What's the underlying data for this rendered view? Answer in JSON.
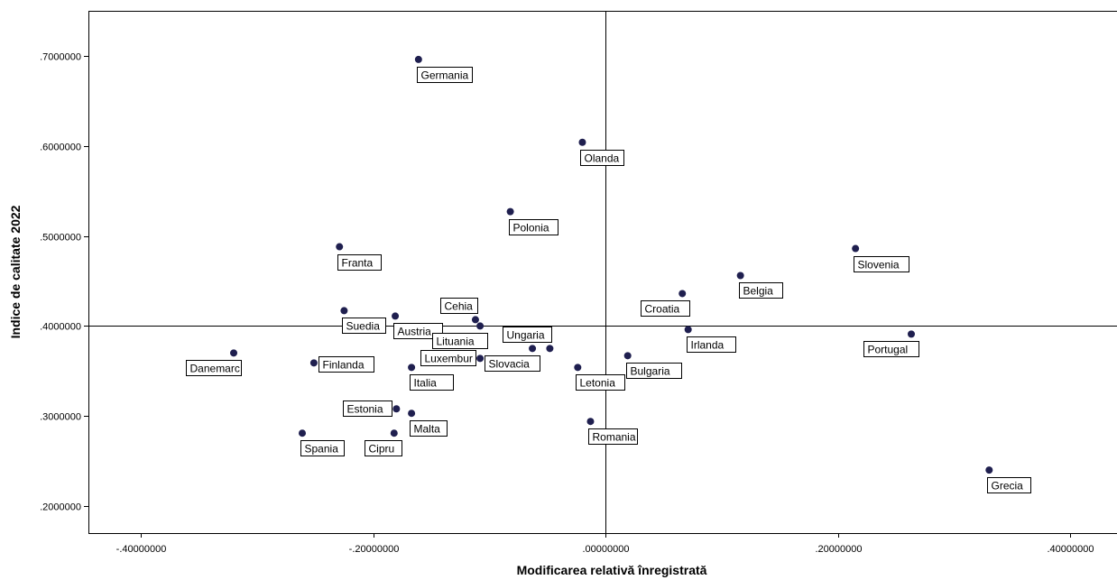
{
  "chart_data": {
    "type": "scatter",
    "xlabel": "Modificarea relativă înregistrată",
    "ylabel": "Indice de calitate 2022",
    "xlim": [
      -0.445,
      0.44
    ],
    "ylim": [
      0.17,
      0.75
    ],
    "x_ticks": [
      {
        "value": -0.4,
        "label": "-.40000000"
      },
      {
        "value": -0.2,
        "label": "-.20000000"
      },
      {
        "value": 0.0,
        "label": ".00000000"
      },
      {
        "value": 0.2,
        "label": ".20000000"
      },
      {
        "value": 0.4,
        "label": ".40000000"
      }
    ],
    "y_ticks": [
      {
        "value": 0.2,
        "label": ".2000000"
      },
      {
        "value": 0.3,
        "label": ".3000000"
      },
      {
        "value": 0.4,
        "label": ".4000000"
      },
      {
        "value": 0.5,
        "label": ".5000000"
      },
      {
        "value": 0.6,
        "label": ".6000000"
      },
      {
        "value": 0.7,
        "label": ".7000000"
      }
    ],
    "reference_lines": {
      "x": 0.0,
      "y": 0.4
    },
    "grid": false,
    "marker_color": "#1f1f4f",
    "points": [
      {
        "label": "Germania",
        "x": -0.161,
        "y": 0.696,
        "label_side": "below-right"
      },
      {
        "label": "Olanda",
        "x": -0.02,
        "y": 0.604,
        "label_side": "below-right"
      },
      {
        "label": "Polonia",
        "x": -0.082,
        "y": 0.527,
        "label_side": "below-right"
      },
      {
        "label": "Franta",
        "x": -0.229,
        "y": 0.488,
        "label_side": "below-right"
      },
      {
        "label": "Slovenia",
        "x": 0.215,
        "y": 0.486,
        "label_side": "below-right"
      },
      {
        "label": "Belgia",
        "x": 0.116,
        "y": 0.456,
        "label_side": "below-right"
      },
      {
        "label": "Croatia",
        "x": 0.066,
        "y": 0.436,
        "label_side": "below-left"
      },
      {
        "label": "Suedia",
        "x": -0.225,
        "y": 0.417,
        "label_side": "below-right"
      },
      {
        "label": "Austria",
        "x": -0.181,
        "y": 0.411,
        "label_side": "below-right"
      },
      {
        "label": "Cehia",
        "x": -0.112,
        "y": 0.407,
        "label_side": "above-left"
      },
      {
        "label": "Lituania",
        "x": -0.108,
        "y": 0.4,
        "label_side": "below-left"
      },
      {
        "label": "Irlanda",
        "x": 0.071,
        "y": 0.396,
        "label_side": "below-right"
      },
      {
        "label": "Portugal",
        "x": 0.263,
        "y": 0.391,
        "label_side": "below-left"
      },
      {
        "label": "Ungaria",
        "x": -0.048,
        "y": 0.375,
        "label_side": "above-left"
      },
      {
        "label": "Slovacia",
        "x": -0.063,
        "y": 0.375,
        "label_side": "below-left"
      },
      {
        "label": "Danemarc",
        "x": -0.32,
        "y": 0.37,
        "label_side": "below-left"
      },
      {
        "label": "Bulgaria",
        "x": 0.019,
        "y": 0.367,
        "label_side": "below-right"
      },
      {
        "label": "Luxembur",
        "x": -0.108,
        "y": 0.364,
        "label_side": "left"
      },
      {
        "label": "Finlanda",
        "x": -0.251,
        "y": 0.359,
        "label_side": "right"
      },
      {
        "label": "Italia",
        "x": -0.167,
        "y": 0.354,
        "label_side": "below-right"
      },
      {
        "label": "Letonia",
        "x": -0.024,
        "y": 0.354,
        "label_side": "below-right"
      },
      {
        "label": "Estonia",
        "x": -0.18,
        "y": 0.308,
        "label_side": "left"
      },
      {
        "label": "Malta",
        "x": -0.167,
        "y": 0.303,
        "label_side": "below-right"
      },
      {
        "label": "Romania",
        "x": -0.013,
        "y": 0.294,
        "label_side": "below-right"
      },
      {
        "label": "Spania",
        "x": -0.261,
        "y": 0.281,
        "label_side": "below-right"
      },
      {
        "label": "Cipru",
        "x": -0.182,
        "y": 0.281,
        "label_side": "below-left"
      },
      {
        "label": "Grecia",
        "x": 0.33,
        "y": 0.24,
        "label_side": "below-right"
      }
    ]
  }
}
